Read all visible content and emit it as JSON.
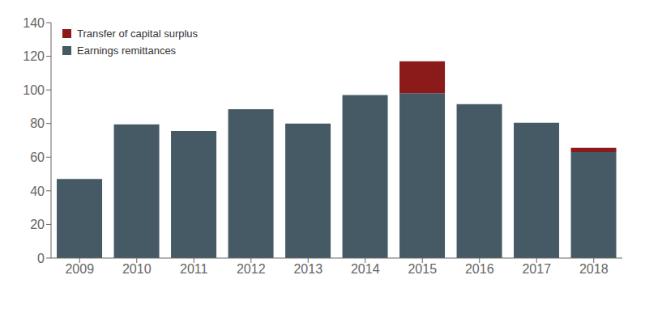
{
  "chart_data": {
    "type": "bar",
    "categories": [
      "2009",
      "2010",
      "2011",
      "2012",
      "2013",
      "2014",
      "2015",
      "2016",
      "2017",
      "2018"
    ],
    "series": [
      {
        "name": "Earnings remittances",
        "color": "#455A64",
        "values": [
          47,
          79.5,
          75.5,
          88.5,
          80,
          97,
          98,
          91.5,
          80.5,
          63
        ]
      },
      {
        "name": "Transfer of capital surplus",
        "color": "#8B1A1A",
        "values": [
          0,
          0,
          0,
          0,
          0,
          0,
          19,
          0,
          0,
          2.5
        ]
      }
    ],
    "stacked": true,
    "ylim": [
      0,
      140
    ],
    "yticks": [
      0,
      20,
      40,
      60,
      80,
      100,
      120,
      140
    ],
    "grid": false,
    "legend": "upper left"
  }
}
